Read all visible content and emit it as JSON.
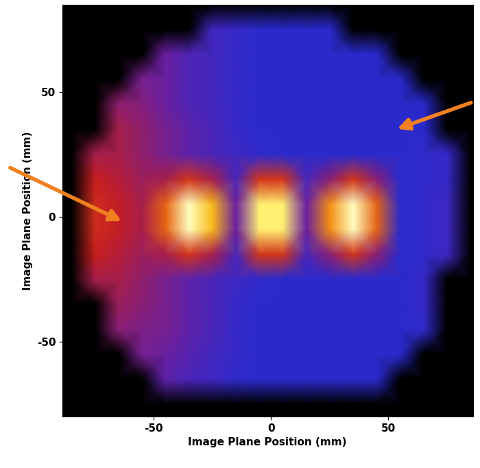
{
  "chart_data": {
    "type": "heatmap",
    "x_label": "Image Plane Position (mm)",
    "y_label": "Image Plane Position (mm)",
    "x": [
      -85,
      -75,
      -65,
      -55,
      -45,
      -35,
      -25,
      -15,
      -5,
      5,
      15,
      25,
      35,
      45,
      55,
      65,
      75,
      85
    ],
    "y": [
      85,
      75,
      65,
      55,
      45,
      35,
      25,
      15,
      5,
      -5,
      -15,
      -25,
      -35,
      -45,
      -55,
      -65,
      -75
    ],
    "cells": [
      [
        0,
        0,
        0,
        0,
        0,
        0,
        0,
        0,
        0,
        0,
        0,
        0,
        0,
        0,
        0,
        0,
        0,
        0
      ],
      [
        0,
        0,
        0,
        0,
        0,
        0,
        1.4,
        1.2,
        1,
        1,
        1,
        1,
        0,
        0,
        0,
        0,
        0,
        0
      ],
      [
        0,
        0,
        0,
        0,
        2,
        1.6,
        1.4,
        1.2,
        1,
        1,
        1,
        1,
        1,
        1,
        0,
        0,
        0,
        0
      ],
      [
        0,
        0,
        0,
        2.2,
        2,
        1.6,
        1.4,
        1.2,
        1,
        1,
        1,
        1,
        1,
        1,
        1,
        0,
        0,
        0
      ],
      [
        0,
        0,
        2.6,
        2.4,
        2,
        1.6,
        1.4,
        1.2,
        1,
        1,
        1,
        1,
        1,
        1,
        1,
        1,
        0,
        0
      ],
      [
        0,
        0,
        3,
        2.6,
        2.2,
        1.8,
        1.5,
        1.2,
        1,
        1,
        1,
        1,
        1,
        1,
        1,
        1,
        0,
        0
      ],
      [
        0,
        3,
        3,
        2.6,
        2.2,
        1.8,
        1.5,
        1.3,
        1.1,
        1,
        1,
        1,
        1,
        1,
        1,
        1.1,
        1.2,
        0
      ],
      [
        0,
        3.5,
        3.2,
        2.8,
        3,
        4,
        3,
        1.5,
        4,
        4,
        1.5,
        2.5,
        4,
        2.5,
        1,
        1.1,
        1.2,
        0
      ],
      [
        0,
        3.8,
        3.4,
        3,
        5,
        10,
        7,
        2,
        9,
        9,
        2,
        6,
        10,
        5,
        1,
        1.1,
        1.3,
        0
      ],
      [
        0,
        3.8,
        3.4,
        3,
        5,
        10,
        7,
        2,
        9,
        9,
        2,
        6,
        10,
        5,
        1,
        1.1,
        1.3,
        0
      ],
      [
        0,
        3.5,
        3.2,
        2.8,
        3,
        4,
        3,
        1.5,
        4,
        4,
        1.5,
        2.5,
        4,
        2.5,
        1,
        1.1,
        1.3,
        0
      ],
      [
        0,
        3,
        3,
        2.6,
        2.2,
        1.8,
        1.5,
        1.3,
        1.1,
        1,
        1,
        1,
        1,
        1,
        1,
        1.2,
        0,
        0
      ],
      [
        0,
        0,
        2.8,
        2.5,
        2.2,
        1.8,
        1.5,
        1.2,
        1,
        1,
        1,
        1,
        1,
        1,
        1,
        1.2,
        0,
        0
      ],
      [
        0,
        0,
        2.5,
        2.3,
        2.2,
        1.8,
        1.5,
        1.2,
        1,
        1,
        1,
        1,
        1,
        1,
        1,
        1.1,
        0,
        0
      ],
      [
        0,
        0,
        0,
        2.2,
        2,
        1.7,
        1.4,
        1.2,
        1,
        1,
        1,
        1,
        1,
        1,
        1,
        0,
        0,
        0
      ],
      [
        0,
        0,
        0,
        0,
        1.8,
        1.5,
        1.3,
        1.1,
        1,
        1,
        1,
        1,
        1,
        1,
        0,
        0,
        0,
        0
      ],
      [
        0,
        0,
        0,
        0,
        0,
        0,
        0,
        0,
        0,
        0,
        0,
        0,
        0,
        0,
        0,
        0,
        0,
        0
      ]
    ],
    "xlim": [
      -89,
      86
    ],
    "ylim": [
      -80,
      85
    ],
    "xticks": [
      -50,
      0,
      50
    ],
    "yticks": [
      -50,
      0,
      50
    ]
  }
}
